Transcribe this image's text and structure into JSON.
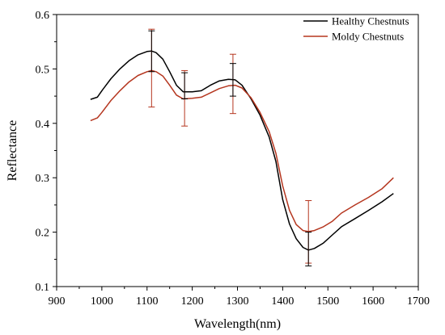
{
  "chart_data": {
    "type": "line",
    "xlabel": "Wavelength(nm)",
    "ylabel": "Reflectance",
    "xlim": [
      900,
      1700
    ],
    "ylim": [
      0.1,
      0.6
    ],
    "xticks": [
      "900",
      "1000",
      "1100",
      "1200",
      "1300",
      "1400",
      "1500",
      "1600",
      "1700"
    ],
    "yticks": [
      "0.1",
      "0.2",
      "0.3",
      "0.4",
      "0.5",
      "0.6"
    ],
    "legend_position": "top-right",
    "grid": false,
    "series": [
      {
        "name": "Healthy Chestnuts",
        "color": "#000000",
        "x": [
          975,
          990,
          1000,
          1020,
          1040,
          1060,
          1080,
          1100,
          1110,
          1120,
          1135,
          1150,
          1165,
          1180,
          1200,
          1220,
          1240,
          1260,
          1280,
          1295,
          1310,
          1330,
          1350,
          1370,
          1385,
          1400,
          1415,
          1430,
          1445,
          1457,
          1470,
          1490,
          1510,
          1530,
          1560,
          1590,
          1620,
          1645
        ],
        "y": [
          0.444,
          0.448,
          0.46,
          0.482,
          0.5,
          0.515,
          0.526,
          0.532,
          0.533,
          0.53,
          0.518,
          0.495,
          0.47,
          0.458,
          0.458,
          0.46,
          0.47,
          0.478,
          0.481,
          0.48,
          0.47,
          0.445,
          0.415,
          0.375,
          0.33,
          0.26,
          0.215,
          0.188,
          0.172,
          0.167,
          0.17,
          0.18,
          0.195,
          0.21,
          0.225,
          0.24,
          0.256,
          0.271
        ]
      },
      {
        "name": "Moldy Chestnuts",
        "color": "#b5361f",
        "x": [
          975,
          990,
          1000,
          1020,
          1040,
          1060,
          1080,
          1100,
          1110,
          1120,
          1135,
          1150,
          1165,
          1180,
          1200,
          1220,
          1240,
          1260,
          1280,
          1295,
          1310,
          1330,
          1350,
          1370,
          1385,
          1400,
          1415,
          1430,
          1445,
          1457,
          1470,
          1490,
          1510,
          1530,
          1560,
          1590,
          1620,
          1640,
          1645
        ],
        "y": [
          0.405,
          0.41,
          0.42,
          0.442,
          0.46,
          0.476,
          0.488,
          0.495,
          0.497,
          0.495,
          0.487,
          0.47,
          0.452,
          0.445,
          0.446,
          0.448,
          0.456,
          0.464,
          0.469,
          0.47,
          0.465,
          0.447,
          0.42,
          0.385,
          0.345,
          0.285,
          0.24,
          0.214,
          0.203,
          0.201,
          0.203,
          0.21,
          0.22,
          0.235,
          0.25,
          0.264,
          0.28,
          0.296,
          0.3
        ]
      }
    ],
    "error_bars": [
      {
        "x": 1110,
        "low": 0.43,
        "high": 0.573
      },
      {
        "x": 1110,
        "low": 0.495,
        "high": 0.57
      },
      {
        "x": 1183,
        "low": 0.395,
        "high": 0.497
      },
      {
        "x": 1183,
        "low": 0.445,
        "high": 0.493
      },
      {
        "x": 1290,
        "low": 0.418,
        "high": 0.527
      },
      {
        "x": 1290,
        "low": 0.45,
        "high": 0.51
      },
      {
        "x": 1457,
        "low": 0.143,
        "high": 0.258
      },
      {
        "x": 1457,
        "low": 0.138,
        "high": 0.2
      }
    ]
  }
}
